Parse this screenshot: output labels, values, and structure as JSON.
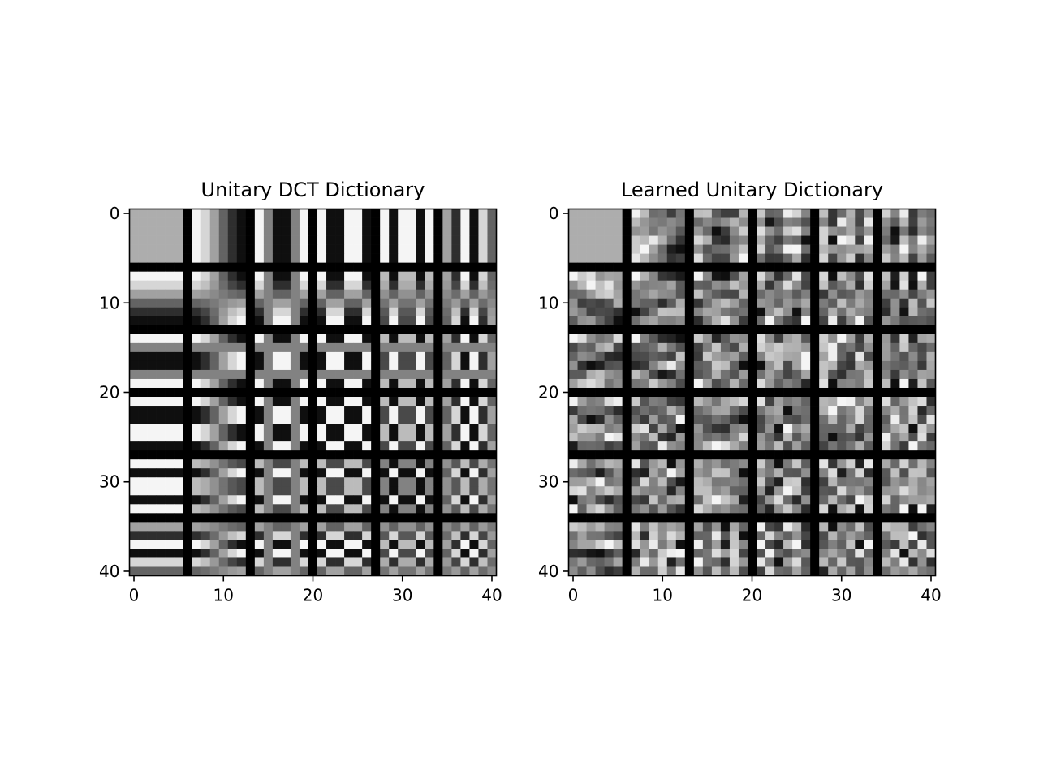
{
  "chart_data": [
    {
      "type": "heatmap",
      "title": "Unitary DCT Dictionary",
      "kind": "dct",
      "colormap": "gray",
      "atom_size": [
        6,
        6
      ],
      "atom_grid": [
        6,
        6
      ],
      "separator_px": 1,
      "separator_value": "black",
      "image_size": [
        41,
        41
      ],
      "xlim": [
        -0.5,
        40.5
      ],
      "ylim": [
        40.5,
        -0.5
      ],
      "xticks": [
        0,
        10,
        20,
        30,
        40
      ],
      "yticks": [
        0,
        10,
        20,
        30,
        40
      ],
      "xtick_labels": [
        "0",
        "10",
        "20",
        "30",
        "40"
      ],
      "ytick_labels": [
        "0",
        "10",
        "20",
        "30",
        "40"
      ],
      "grid": false
    },
    {
      "type": "heatmap",
      "title": "Learned Unitary Dictionary",
      "kind": "learned",
      "colormap": "gray",
      "atom_size": [
        6,
        6
      ],
      "atom_grid": [
        6,
        6
      ],
      "separator_px": 1,
      "separator_value": "black",
      "image_size": [
        41,
        41
      ],
      "xlim": [
        -0.5,
        40.5
      ],
      "ylim": [
        40.5,
        -0.5
      ],
      "xticks": [
        0,
        10,
        20,
        30,
        40
      ],
      "yticks": [
        0,
        10,
        20,
        30,
        40
      ],
      "xtick_labels": [
        "0",
        "10",
        "20",
        "30",
        "40"
      ],
      "ytick_labels": [
        "0",
        "10",
        "20",
        "30",
        "40"
      ],
      "grid": false
    }
  ]
}
